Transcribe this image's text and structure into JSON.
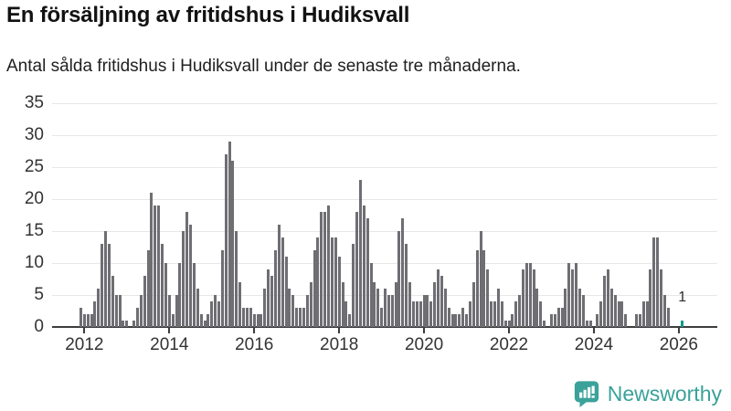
{
  "header": {
    "title": "En försäljning av fritidshus i Hudiksvall",
    "subtitle": "Antal sålda fritidshus i Hudiksvall under de senaste tre månaderna."
  },
  "chart_data": {
    "type": "bar",
    "title": "En försäljning av fritidshus i Hudiksvall",
    "subtitle": "Antal sålda fritidshus i Hudiksvall under de senaste tre månaderna.",
    "xlabel": "",
    "ylabel": "",
    "ylim": [
      0,
      35
    ],
    "yticks": [
      0,
      5,
      10,
      15,
      20,
      25,
      30,
      35
    ],
    "grid": "horizontal",
    "frequency": "monthly",
    "start_month": "2011-12",
    "values": [
      3,
      2,
      2,
      2,
      4,
      6,
      13,
      15,
      13,
      8,
      5,
      5,
      1,
      1,
      0,
      1,
      3,
      5,
      8,
      12,
      21,
      19,
      19,
      13,
      10,
      5,
      2,
      5,
      10,
      15,
      18,
      16,
      10,
      6,
      2,
      1,
      2,
      4,
      5,
      4,
      12,
      27,
      29,
      26,
      15,
      7,
      3,
      3,
      3,
      2,
      2,
      2,
      6,
      9,
      8,
      12,
      16,
      14,
      11,
      6,
      5,
      3,
      3,
      3,
      5,
      7,
      12,
      14,
      18,
      18,
      19,
      14,
      14,
      11,
      7,
      4,
      2,
      13,
      18,
      23,
      19,
      17,
      10,
      7,
      6,
      3,
      6,
      5,
      5,
      7,
      15,
      17,
      13,
      7,
      4,
      4,
      4,
      5,
      5,
      4,
      7,
      9,
      8,
      6,
      3,
      2,
      2,
      2,
      3,
      2,
      4,
      7,
      12,
      15,
      12,
      9,
      4,
      4,
      6,
      4,
      1,
      1,
      2,
      4,
      5,
      9,
      10,
      10,
      9,
      6,
      4,
      1,
      0,
      2,
      2,
      3,
      3,
      6,
      10,
      9,
      10,
      6,
      5,
      1,
      1,
      0,
      2,
      4,
      8,
      9,
      6,
      5,
      4,
      4,
      2,
      0,
      0,
      2,
      2,
      4,
      4,
      9,
      14,
      14,
      9,
      5,
      3,
      0,
      0,
      0,
      1
    ],
    "year_ticks": [
      {
        "index": 1,
        "label": "2012"
      },
      {
        "index": 25,
        "label": "2014"
      },
      {
        "index": 49,
        "label": "2016"
      },
      {
        "index": 73,
        "label": "2018"
      },
      {
        "index": 97,
        "label": "2020"
      },
      {
        "index": 121,
        "label": "2022"
      },
      {
        "index": 145,
        "label": "2024"
      },
      {
        "index": 169,
        "label": "2026"
      }
    ],
    "bar_color": "#6e6e73",
    "highlight": {
      "index": 170,
      "value": 1,
      "label": "1",
      "color": "#0d9a8e"
    },
    "legend": "none"
  },
  "footer": {
    "brand": "Newsworthy",
    "brand_color": "#3aa29a"
  }
}
